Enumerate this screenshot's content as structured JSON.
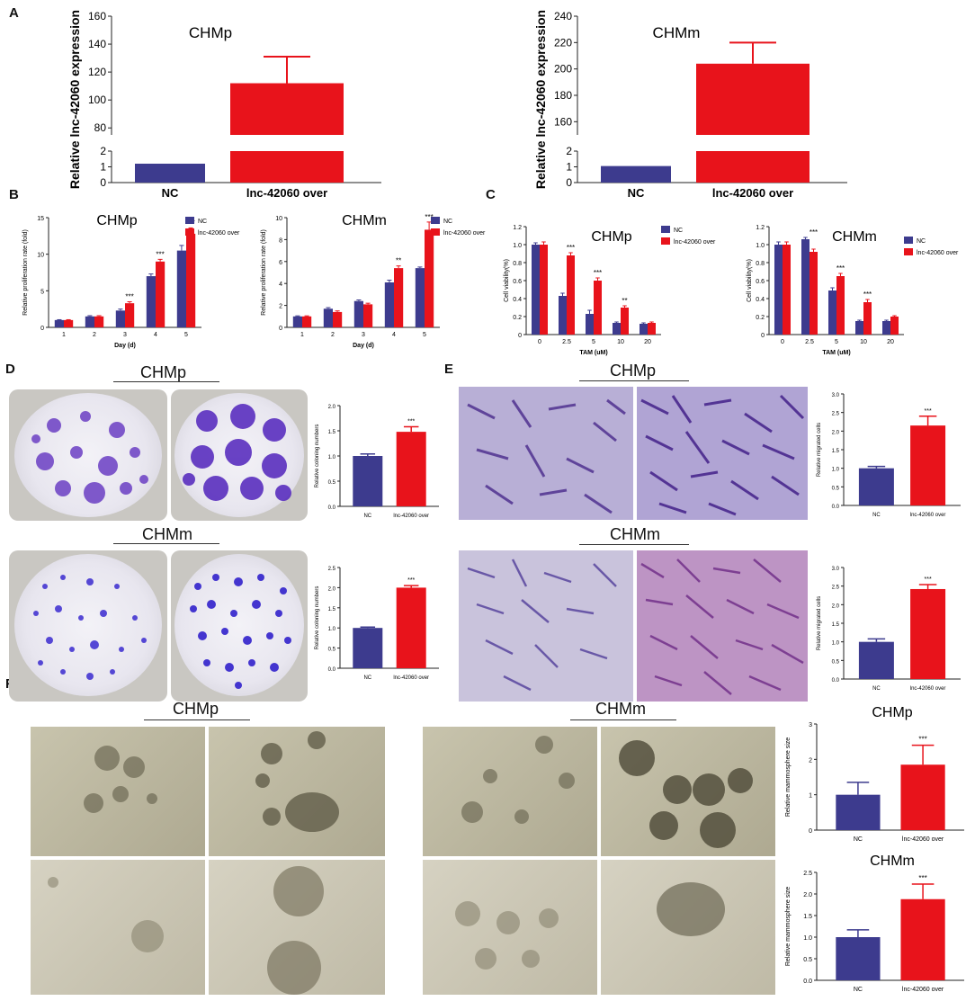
{
  "panels": {
    "A": "A",
    "B": "B",
    "C": "C",
    "D": "D",
    "E": "E",
    "F": "F"
  },
  "legend": {
    "nc": "NC",
    "over": "lnc-42060 over"
  },
  "colors": {
    "nc": "#3d3b8e",
    "over": "#e8131b"
  },
  "sig": {
    "three": "***",
    "two": "**"
  },
  "photo_titles": {
    "D_top": "CHMp",
    "D_bottom": "CHMm",
    "E_top": "CHMp",
    "E_bottom": "CHMm",
    "F_left": "CHMp",
    "F_right": "CHMm"
  },
  "chart_data": [
    {
      "id": "A1",
      "type": "bar",
      "title": "CHMp",
      "ylabel": "Relative lnc-42060 expression",
      "categories": [
        "NC",
        "lnc-42060 over"
      ],
      "values": [
        1.2,
        112
      ],
      "errors": [
        0.05,
        19
      ],
      "broken_axis": {
        "lower": [
          0,
          2
        ],
        "upper": [
          75,
          160
        ]
      },
      "yticks_lower": [
        "0",
        "1",
        "2"
      ],
      "yticks_upper": [
        "80",
        "100",
        "120",
        "140",
        "160"
      ]
    },
    {
      "id": "A2",
      "type": "bar",
      "title": "CHMm",
      "ylabel": "Relative lnc-42060 expression",
      "categories": [
        "NC",
        "lnc-42060 over"
      ],
      "values": [
        1.05,
        204
      ],
      "errors": [
        0.05,
        16
      ],
      "broken_axis": {
        "lower": [
          0,
          2
        ],
        "upper": [
          150,
          240
        ]
      },
      "yticks_lower": [
        "0",
        "1",
        "2"
      ],
      "yticks_upper": [
        "160",
        "180",
        "200",
        "220",
        "240"
      ]
    },
    {
      "id": "B1",
      "type": "bar",
      "title": "CHMp",
      "xlabel": "Day (d)",
      "ylabel": "Relative proliferation rate (fold)",
      "categories": [
        "1",
        "2",
        "3",
        "4",
        "5"
      ],
      "series": [
        {
          "name": "NC",
          "values": [
            1,
            1.5,
            2.3,
            7,
            10.5
          ],
          "errors": [
            0.05,
            0.1,
            0.2,
            0.3,
            0.7
          ]
        },
        {
          "name": "lnc-42060 over",
          "values": [
            1,
            1.5,
            3.3,
            9,
            12.8
          ],
          "errors": [
            0.05,
            0.1,
            0.2,
            0.3,
            0.8
          ]
        }
      ],
      "sig": [
        "",
        "",
        "***",
        "***",
        "***"
      ],
      "ylim": [
        0,
        15
      ],
      "yticks": [
        "0",
        "5",
        "10",
        "15"
      ]
    },
    {
      "id": "B2",
      "type": "bar",
      "title": "CHMm",
      "xlabel": "Day (d)",
      "ylabel": "Relative proliferation rate (fold)",
      "categories": [
        "1",
        "2",
        "3",
        "4",
        "5"
      ],
      "series": [
        {
          "name": "NC",
          "values": [
            1,
            1.7,
            2.4,
            4.1,
            5.4
          ],
          "errors": [
            0.05,
            0.1,
            0.1,
            0.2,
            0.1
          ]
        },
        {
          "name": "lnc-42060 over",
          "values": [
            1,
            1.4,
            2.1,
            5.4,
            8.9
          ],
          "errors": [
            0.05,
            0.1,
            0.1,
            0.2,
            0.7
          ]
        }
      ],
      "sig": [
        "",
        "",
        "",
        "**",
        "***"
      ],
      "ylim": [
        0,
        10
      ],
      "yticks": [
        "0",
        "2",
        "4",
        "6",
        "8",
        "10"
      ]
    },
    {
      "id": "C1",
      "type": "bar",
      "title": "CHMp",
      "xlabel": "TAM (uM)",
      "ylabel": "Cell viability(%)",
      "categories": [
        "0",
        "2.5",
        "5",
        "10",
        "20"
      ],
      "series": [
        {
          "name": "NC",
          "values": [
            1.0,
            0.43,
            0.23,
            0.13,
            0.12
          ],
          "errors": [
            0.02,
            0.03,
            0.04,
            0.01,
            0.01
          ]
        },
        {
          "name": "lnc-42060 over",
          "values": [
            1.0,
            0.88,
            0.6,
            0.3,
            0.13
          ],
          "errors": [
            0.03,
            0.03,
            0.03,
            0.02,
            0.01
          ]
        }
      ],
      "sig": [
        "",
        "***",
        "***",
        "**",
        ""
      ],
      "ylim": [
        0,
        1.2
      ],
      "yticks": [
        "0",
        "0.2",
        "0.4",
        "0.6",
        "0.8",
        "1.0",
        "1.2"
      ]
    },
    {
      "id": "C2",
      "type": "bar",
      "title": "CHMm",
      "xlabel": "TAM (uM)",
      "ylabel": "Cell viability(%)",
      "categories": [
        "0",
        "2.5",
        "5",
        "10",
        "20"
      ],
      "series": [
        {
          "name": "NC",
          "values": [
            1.0,
            1.06,
            0.49,
            0.15,
            0.15
          ],
          "errors": [
            0.03,
            0.02,
            0.03,
            0.01,
            0.01
          ]
        },
        {
          "name": "lnc-42060 over",
          "values": [
            1.0,
            0.92,
            0.65,
            0.36,
            0.2
          ],
          "errors": [
            0.03,
            0.03,
            0.03,
            0.03,
            0.01
          ]
        }
      ],
      "sig": [
        "",
        "***",
        "***",
        "***",
        ""
      ],
      "ylim": [
        0,
        1.2
      ],
      "yticks": [
        "0",
        "0.2",
        "0.4",
        "0.6",
        "0.8",
        "1.0",
        "1.2"
      ]
    },
    {
      "id": "D1",
      "type": "bar",
      "ylabel": "Relative coloning numbers",
      "categories": [
        "NC",
        "lnc-42060 over"
      ],
      "values": [
        1.0,
        1.48
      ],
      "errors": [
        0.04,
        0.1
      ],
      "sig": [
        "",
        "***"
      ],
      "ylim": [
        0,
        2.0
      ],
      "yticks": [
        "0.0",
        "0.5",
        "1.0",
        "1.5",
        "2.0"
      ]
    },
    {
      "id": "D2",
      "type": "bar",
      "ylabel": "Relative coloning numbers",
      "categories": [
        "NC",
        "lnc-42060 over"
      ],
      "values": [
        1.0,
        2.0
      ],
      "errors": [
        0.02,
        0.05
      ],
      "sig": [
        "",
        "***"
      ],
      "ylim": [
        0,
        2.5
      ],
      "yticks": [
        "0.0",
        "0.5",
        "1.0",
        "1.5",
        "2.0",
        "2.5"
      ]
    },
    {
      "id": "E1",
      "type": "bar",
      "ylabel": "Relative migrated cells",
      "categories": [
        "NC",
        "lnc-42060 over"
      ],
      "values": [
        1.0,
        2.15
      ],
      "errors": [
        0.05,
        0.25
      ],
      "sig": [
        "",
        "***"
      ],
      "ylim": [
        0,
        3.0
      ],
      "yticks": [
        "0.0",
        "0.5",
        "1.0",
        "1.5",
        "2.0",
        "2.5",
        "3.0"
      ]
    },
    {
      "id": "E2",
      "type": "bar",
      "ylabel": "Relative migrated cells",
      "categories": [
        "NC",
        "lnc-42060 over"
      ],
      "values": [
        1.0,
        2.42
      ],
      "errors": [
        0.08,
        0.12
      ],
      "sig": [
        "",
        "***"
      ],
      "ylim": [
        0,
        3.0
      ],
      "yticks": [
        "0.0",
        "0.5",
        "1.0",
        "1.5",
        "2.0",
        "2.5",
        "3.0"
      ]
    },
    {
      "id": "F1",
      "type": "bar",
      "title": "CHMp",
      "ylabel": "Relative mammosphere size",
      "categories": [
        "NC",
        "lnc-42060 over"
      ],
      "values": [
        1.0,
        1.85
      ],
      "errors": [
        0.35,
        0.55
      ],
      "sig": [
        "",
        "***"
      ],
      "ylim": [
        0,
        3.0
      ],
      "yticks": [
        "0",
        "1",
        "2",
        "3"
      ]
    },
    {
      "id": "F2",
      "type": "bar",
      "title": "CHMm",
      "ylabel": "Relative mammosphere size",
      "categories": [
        "NC",
        "lnc-42060 over"
      ],
      "values": [
        1.0,
        1.88
      ],
      "errors": [
        0.17,
        0.35
      ],
      "sig": [
        "",
        "***"
      ],
      "ylim": [
        0,
        2.5
      ],
      "yticks": [
        "0.0",
        "0.5",
        "1.0",
        "1.5",
        "2.0",
        "2.5"
      ]
    }
  ]
}
